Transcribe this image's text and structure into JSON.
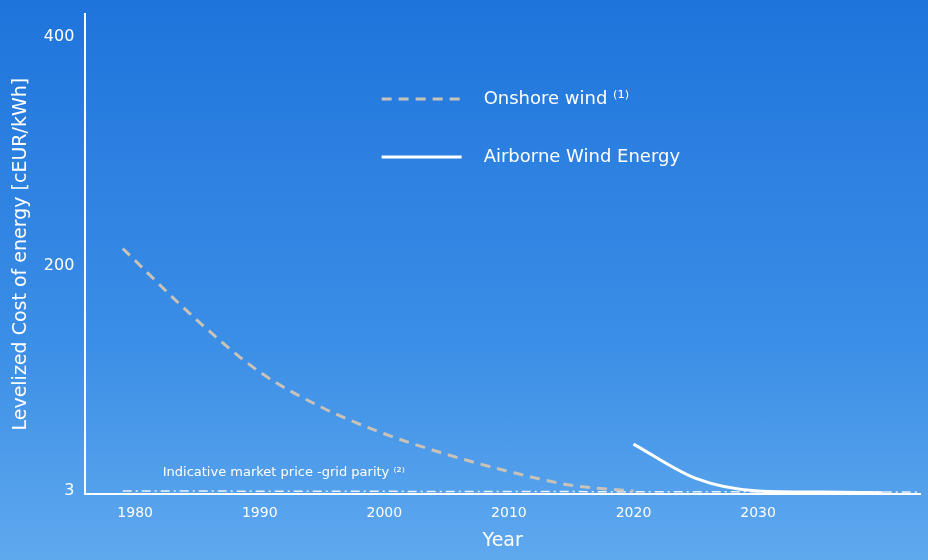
{
  "chart_data": {
    "type": "line",
    "x_label": "Year",
    "y_label": "Levelized Cost of energy [cEUR/kWh]",
    "xlim": [
      1976,
      2043
    ],
    "xticks": [
      1980,
      1990,
      2000,
      2010,
      2020,
      2030
    ],
    "ylim": [
      0,
      420
    ],
    "yticks": [
      3,
      200,
      400
    ],
    "grid": false,
    "legend": "top",
    "series": [
      {
        "name": "Onshore wind ⁽¹⁾",
        "color": "#c9c2b8",
        "line_style": "dashed",
        "x": [
          1979,
          1985,
          1990,
          1995,
          2000,
          2005,
          2010,
          2015,
          2020
        ],
        "values": [
          215,
          152,
          107,
          76,
          53,
          35,
          20,
          8,
          3
        ]
      },
      {
        "name": "Airborne Wind Energy",
        "color": "#ffffff",
        "line_style": "solid",
        "x": [
          2020,
          2025,
          2030,
          2035,
          2040
        ],
        "values": [
          44,
          14,
          3,
          2,
          1.5
        ]
      }
    ],
    "reference_line": {
      "label": "Indicative market price -grid parity ⁽²⁾",
      "color": "#e8f0fa",
      "line_style": "dashdot",
      "x": [
        1979,
        2043
      ],
      "values": [
        3,
        2
      ]
    }
  }
}
